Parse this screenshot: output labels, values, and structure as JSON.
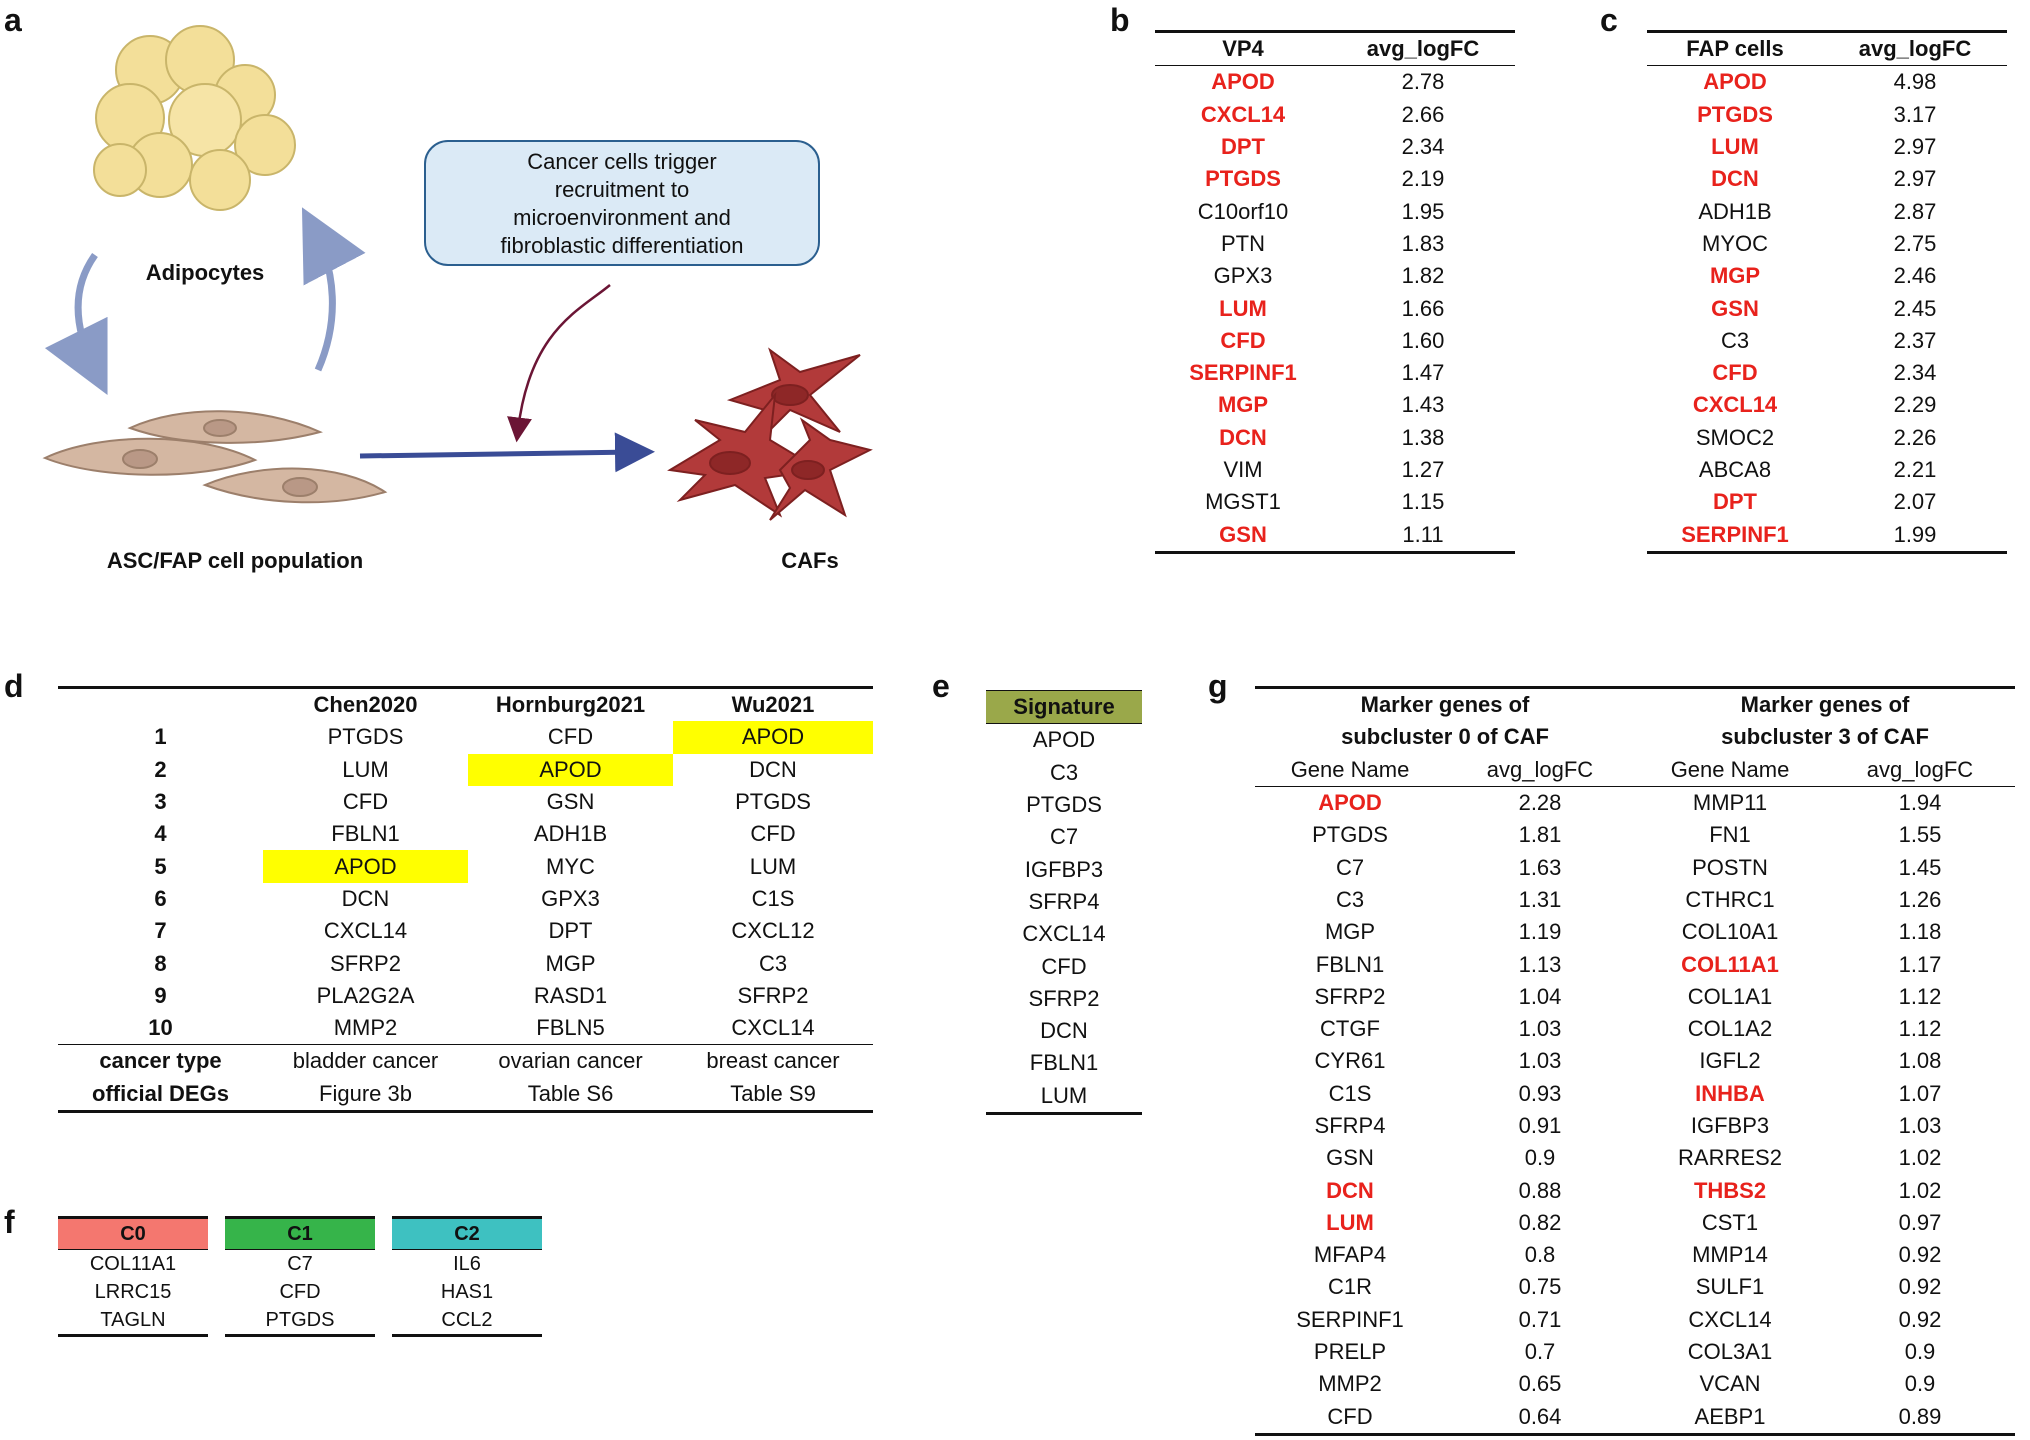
{
  "panels": {
    "a": "a",
    "b": "b",
    "c": "c",
    "d": "d",
    "e": "e",
    "f": "f",
    "g": "g"
  },
  "panel_a": {
    "adipocytes_label": "Adipocytes",
    "asc_label": "ASC/FAP cell population",
    "cafs_label": "CAFs",
    "box_lines": [
      "Cancer cells trigger",
      "recruitment to",
      "microenvironment and",
      "fibroblastic differentiation"
    ],
    "colors": {
      "adipocyte": "#f3df99",
      "fibroblast": "#d4b7a2",
      "caf": "#b23a3a",
      "arrow": "#8a9bc6",
      "box_bg": "#dbeaf6"
    }
  },
  "panel_b": {
    "headers": [
      "VP4",
      "avg_logFC"
    ],
    "rows": [
      {
        "gene": "APOD",
        "val": "2.78",
        "red": true
      },
      {
        "gene": "CXCL14",
        "val": "2.66",
        "red": true
      },
      {
        "gene": "DPT",
        "val": "2.34",
        "red": true
      },
      {
        "gene": "PTGDS",
        "val": "2.19",
        "red": true
      },
      {
        "gene": "C10orf10",
        "val": "1.95",
        "red": false
      },
      {
        "gene": "PTN",
        "val": "1.83",
        "red": false
      },
      {
        "gene": "GPX3",
        "val": "1.82",
        "red": false
      },
      {
        "gene": "LUM",
        "val": "1.66",
        "red": true
      },
      {
        "gene": "CFD",
        "val": "1.60",
        "red": true
      },
      {
        "gene": "SERPINF1",
        "val": "1.47",
        "red": true
      },
      {
        "gene": "MGP",
        "val": "1.43",
        "red": true
      },
      {
        "gene": "DCN",
        "val": "1.38",
        "red": true
      },
      {
        "gene": "VIM",
        "val": "1.27",
        "red": false
      },
      {
        "gene": "MGST1",
        "val": "1.15",
        "red": false
      },
      {
        "gene": "GSN",
        "val": "1.11",
        "red": true
      }
    ]
  },
  "panel_c": {
    "headers": [
      "FAP cells",
      "avg_logFC"
    ],
    "rows": [
      {
        "gene": "APOD",
        "val": "4.98",
        "red": true
      },
      {
        "gene": "PTGDS",
        "val": "3.17",
        "red": true
      },
      {
        "gene": "LUM",
        "val": "2.97",
        "red": true
      },
      {
        "gene": "DCN",
        "val": "2.97",
        "red": true
      },
      {
        "gene": "ADH1B",
        "val": "2.87",
        "red": false
      },
      {
        "gene": "MYOC",
        "val": "2.75",
        "red": false
      },
      {
        "gene": "MGP",
        "val": "2.46",
        "red": true
      },
      {
        "gene": "GSN",
        "val": "2.45",
        "red": true
      },
      {
        "gene": "C3",
        "val": "2.37",
        "red": false
      },
      {
        "gene": "CFD",
        "val": "2.34",
        "red": true
      },
      {
        "gene": "CXCL14",
        "val": "2.29",
        "red": true
      },
      {
        "gene": "SMOC2",
        "val": "2.26",
        "red": false
      },
      {
        "gene": "ABCA8",
        "val": "2.21",
        "red": false
      },
      {
        "gene": "DPT",
        "val": "2.07",
        "red": true
      },
      {
        "gene": "SERPINF1",
        "val": "1.99",
        "red": true
      }
    ]
  },
  "panel_d": {
    "headers": [
      "",
      "Chen2020",
      "Hornburg2021",
      "Wu2021"
    ],
    "rows": [
      {
        "rank": "1",
        "c1": "PTGDS",
        "c2": "CFD",
        "c3": "APOD",
        "hl": [
          false,
          false,
          true
        ]
      },
      {
        "rank": "2",
        "c1": "LUM",
        "c2": "APOD",
        "c3": "DCN",
        "hl": [
          false,
          true,
          false
        ]
      },
      {
        "rank": "3",
        "c1": "CFD",
        "c2": "GSN",
        "c3": "PTGDS",
        "hl": [
          false,
          false,
          false
        ]
      },
      {
        "rank": "4",
        "c1": "FBLN1",
        "c2": "ADH1B",
        "c3": "CFD",
        "hl": [
          false,
          false,
          false
        ]
      },
      {
        "rank": "5",
        "c1": "APOD",
        "c2": "MYC",
        "c3": "LUM",
        "hl": [
          true,
          false,
          false
        ]
      },
      {
        "rank": "6",
        "c1": "DCN",
        "c2": "GPX3",
        "c3": "C1S",
        "hl": [
          false,
          false,
          false
        ]
      },
      {
        "rank": "7",
        "c1": "CXCL14",
        "c2": "DPT",
        "c3": "CXCL12",
        "hl": [
          false,
          false,
          false
        ]
      },
      {
        "rank": "8",
        "c1": "SFRP2",
        "c2": "MGP",
        "c3": "C3",
        "hl": [
          false,
          false,
          false
        ]
      },
      {
        "rank": "9",
        "c1": "PLA2G2A",
        "c2": "RASD1",
        "c3": "SFRP2",
        "hl": [
          false,
          false,
          false
        ]
      },
      {
        "rank": "10",
        "c1": "MMP2",
        "c2": "FBLN5",
        "c3": "CXCL14",
        "hl": [
          false,
          false,
          false
        ]
      }
    ],
    "footer": [
      {
        "label": "cancer type",
        "c1": "bladder cancer",
        "c2": "ovarian cancer",
        "c3": "breast cancer"
      },
      {
        "label": "official DEGs",
        "c1": "Figure 3b",
        "c2": "Table S6",
        "c3": "Table S9"
      }
    ],
    "highlight_color": "#ffff00"
  },
  "panel_e": {
    "header": "Signature",
    "header_color": "#9aa84a",
    "genes": [
      "APOD",
      "C3",
      "PTGDS",
      "C7",
      "IGFBP3",
      "SFRP4",
      "CXCL14",
      "CFD",
      "SFRP2",
      "DCN",
      "FBLN1",
      "LUM"
    ]
  },
  "panel_f": {
    "clusters": [
      {
        "name": "C0",
        "color": "#f4776f",
        "genes": [
          "COL11A1",
          "LRRC15",
          "TAGLN"
        ]
      },
      {
        "name": "C1",
        "color": "#36b44a",
        "genes": [
          "C7",
          "CFD",
          "PTGDS"
        ]
      },
      {
        "name": "C2",
        "color": "#3ec1c1",
        "genes": [
          "IL6",
          "HAS1",
          "CCL2"
        ]
      }
    ]
  },
  "panel_g": {
    "group_headers": [
      {
        "line1": "Marker genes of",
        "line2": "subcluster 0 of CAF"
      },
      {
        "line1": "Marker genes of",
        "line2": "subcluster 3 of CAF"
      }
    ],
    "sub_headers": [
      "Gene Name",
      "avg_logFC",
      "Gene Name",
      "avg_logFC"
    ],
    "rows": [
      {
        "g0": "APOD",
        "v0": "2.28",
        "r0": true,
        "g3": "MMP11",
        "v3": "1.94",
        "r3": false
      },
      {
        "g0": "PTGDS",
        "v0": "1.81",
        "r0": false,
        "g3": "FN1",
        "v3": "1.55",
        "r3": false
      },
      {
        "g0": "C7",
        "v0": "1.63",
        "r0": false,
        "g3": "POSTN",
        "v3": "1.45",
        "r3": false
      },
      {
        "g0": "C3",
        "v0": "1.31",
        "r0": false,
        "g3": "CTHRC1",
        "v3": "1.26",
        "r3": false
      },
      {
        "g0": "MGP",
        "v0": "1.19",
        "r0": false,
        "g3": "COL10A1",
        "v3": "1.18",
        "r3": false
      },
      {
        "g0": "FBLN1",
        "v0": "1.13",
        "r0": false,
        "g3": "COL11A1",
        "v3": "1.17",
        "r3": true
      },
      {
        "g0": "SFRP2",
        "v0": "1.04",
        "r0": false,
        "g3": "COL1A1",
        "v3": "1.12",
        "r3": false
      },
      {
        "g0": "CTGF",
        "v0": "1.03",
        "r0": false,
        "g3": "COL1A2",
        "v3": "1.12",
        "r3": false
      },
      {
        "g0": "CYR61",
        "v0": "1.03",
        "r0": false,
        "g3": "IGFL2",
        "v3": "1.08",
        "r3": false
      },
      {
        "g0": "C1S",
        "v0": "0.93",
        "r0": false,
        "g3": "INHBA",
        "v3": "1.07",
        "r3": true
      },
      {
        "g0": "SFRP4",
        "v0": "0.91",
        "r0": false,
        "g3": "IGFBP3",
        "v3": "1.03",
        "r3": false
      },
      {
        "g0": "GSN",
        "v0": "0.9",
        "r0": false,
        "g3": "RARRES2",
        "v3": "1.02",
        "r3": false
      },
      {
        "g0": "DCN",
        "v0": "0.88",
        "r0": true,
        "g3": "THBS2",
        "v3": "1.02",
        "r3": true
      },
      {
        "g0": "LUM",
        "v0": "0.82",
        "r0": true,
        "g3": "CST1",
        "v3": "0.97",
        "r3": false
      },
      {
        "g0": "MFAP4",
        "v0": "0.8",
        "r0": false,
        "g3": "MMP14",
        "v3": "0.92",
        "r3": false
      },
      {
        "g0": "C1R",
        "v0": "0.75",
        "r0": false,
        "g3": "SULF1",
        "v3": "0.92",
        "r3": false
      },
      {
        "g0": "SERPINF1",
        "v0": "0.71",
        "r0": false,
        "g3": "CXCL14",
        "v3": "0.92",
        "r3": false
      },
      {
        "g0": "PRELP",
        "v0": "0.7",
        "r0": false,
        "g3": "COL3A1",
        "v3": "0.9",
        "r3": false
      },
      {
        "g0": "MMP2",
        "v0": "0.65",
        "r0": false,
        "g3": "VCAN",
        "v3": "0.9",
        "r3": false
      },
      {
        "g0": "CFD",
        "v0": "0.64",
        "r0": false,
        "g3": "AEBP1",
        "v3": "0.89",
        "r3": false
      }
    ]
  }
}
